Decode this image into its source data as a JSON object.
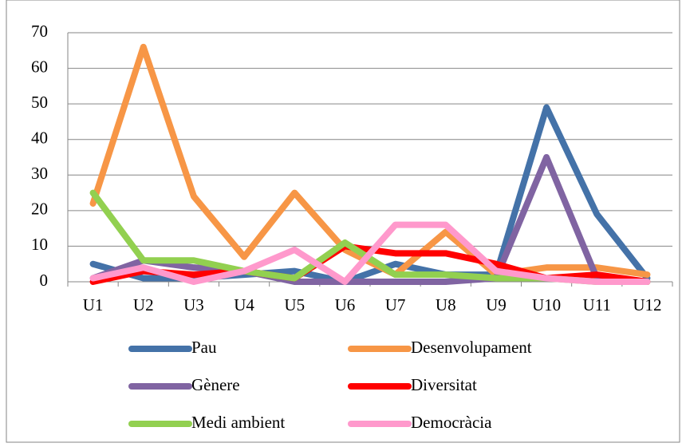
{
  "chart_data": {
    "type": "line",
    "categories": [
      "U1",
      "U2",
      "U3",
      "U4",
      "U5",
      "U6",
      "U7",
      "U8",
      "U9",
      "U10",
      "U11",
      "U12"
    ],
    "series": [
      {
        "name": "Pau",
        "color": "#4472a8",
        "values": [
          5,
          1,
          1,
          2,
          3,
          0,
          5,
          2,
          2,
          49,
          19,
          1
        ]
      },
      {
        "name": "Desenvolupament",
        "color": "#f79646",
        "values": [
          22,
          66,
          24,
          7,
          25,
          9,
          2,
          14,
          2,
          4,
          4,
          2
        ]
      },
      {
        "name": "Gènere",
        "color": "#8064a2",
        "values": [
          1,
          6,
          4,
          3,
          0,
          0,
          0,
          0,
          1,
          35,
          1,
          0
        ]
      },
      {
        "name": "Diversitat",
        "color": "#ff0000",
        "values": [
          0,
          3,
          2,
          3,
          1,
          10,
          8,
          8,
          5,
          1,
          2,
          0
        ]
      },
      {
        "name": "Medi ambient",
        "color": "#92d050",
        "values": [
          25,
          6,
          6,
          3,
          1,
          11,
          2,
          2,
          1,
          1,
          0,
          0
        ]
      },
      {
        "name": "Democràcia",
        "color": "#ff99cc",
        "values": [
          1,
          4,
          0,
          3,
          9,
          0,
          16,
          16,
          3,
          1,
          0,
          0
        ]
      }
    ],
    "ylim": [
      0,
      70
    ],
    "yticks": [
      0,
      10,
      20,
      30,
      40,
      50,
      60,
      70
    ],
    "grid": true,
    "legend": "bottom"
  }
}
